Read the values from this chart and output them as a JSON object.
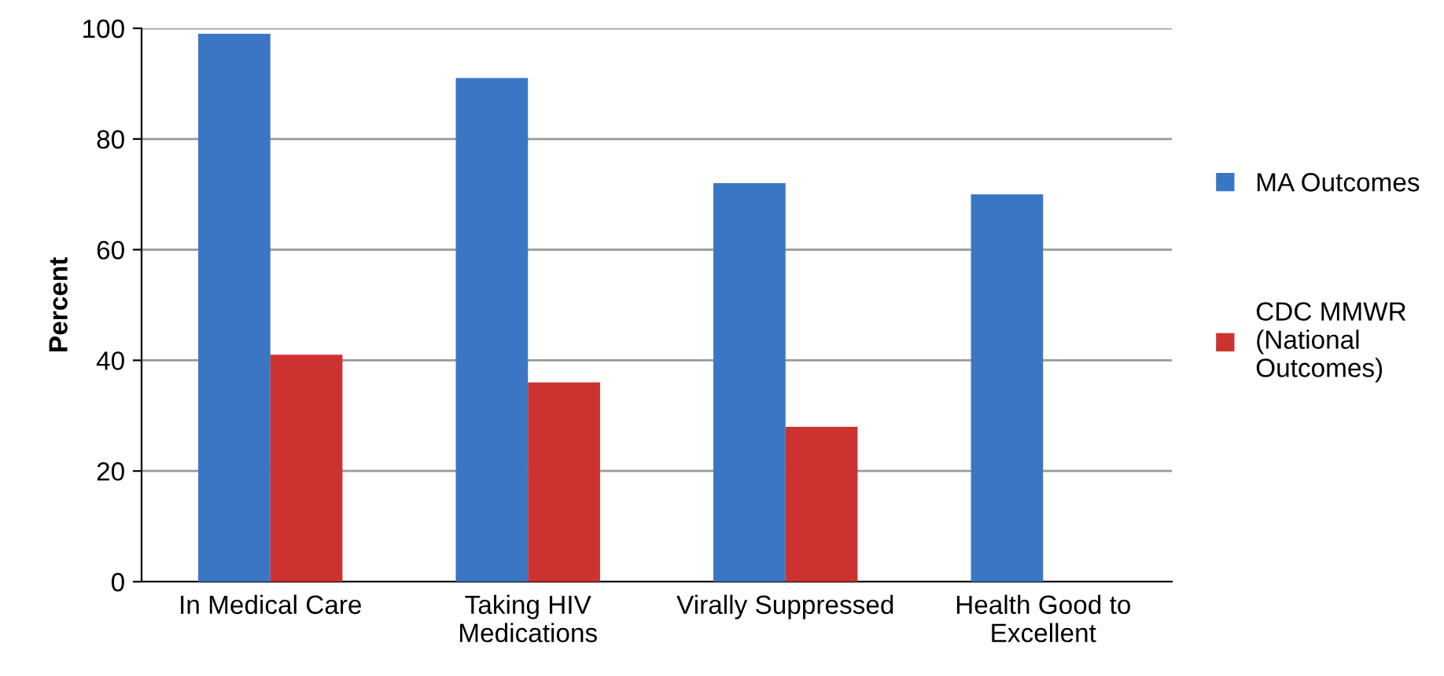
{
  "chart_data": {
    "type": "bar",
    "ylabel": "Percent",
    "categories": [
      "In Medical Care",
      "Taking HIV\nMedications",
      "Virally Suppressed",
      "Health Good to\nExcellent"
    ],
    "series": [
      {
        "name": "MA Outcomes",
        "color": "#3a76c4",
        "values": [
          99,
          91,
          72,
          70
        ]
      },
      {
        "name": "CDC MMWR\n(National\nOutcomes)",
        "color": "#cc3330",
        "values": [
          41,
          36,
          28,
          null
        ]
      }
    ],
    "ylim": [
      0,
      100
    ],
    "yticks": [
      0,
      20,
      40,
      60,
      80,
      100
    ],
    "grid": "y",
    "legend": "right"
  }
}
